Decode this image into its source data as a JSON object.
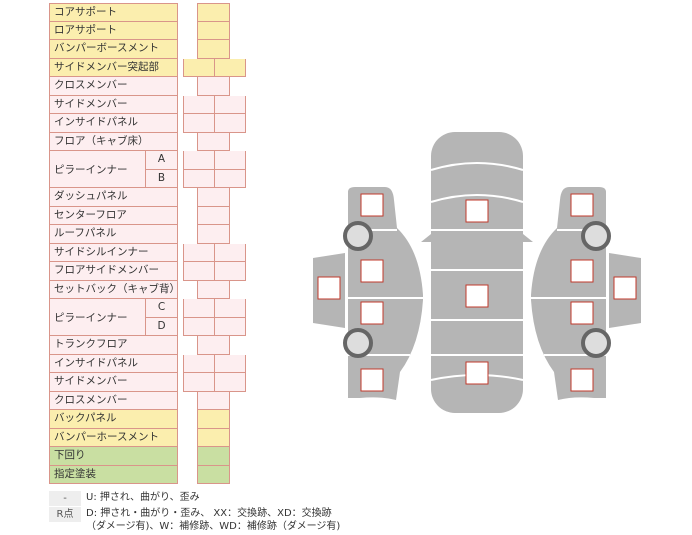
{
  "rows": [
    {
      "label": "コアサポート",
      "color": "y",
      "cells": 1
    },
    {
      "label": "ロアサポート",
      "color": "y",
      "cells": 1
    },
    {
      "label": "バンパーボースメント",
      "color": "y",
      "cells": 1
    },
    {
      "label": "サイドメンバー突起部",
      "color": "y",
      "cells": 2
    },
    {
      "label": "クロスメンバー",
      "color": "p",
      "cells": 1
    },
    {
      "label": "サイドメンバー",
      "color": "p",
      "cells": 2
    },
    {
      "label": "インサイドパネル",
      "color": "p",
      "cells": 2
    },
    {
      "label": "フロア（キャブ床）",
      "color": "p",
      "cells": 1
    },
    {
      "label": "ピラーインナー",
      "sub": "A",
      "color": "p",
      "cells": 2
    },
    {
      "label": "",
      "sub": "B",
      "color": "p",
      "cells": 2
    },
    {
      "label": "ダッシュパネル",
      "color": "p",
      "cells": 1
    },
    {
      "label": "センターフロア",
      "color": "p",
      "cells": 1
    },
    {
      "label": "ルーフパネル",
      "color": "p",
      "cells": 1
    },
    {
      "label": "サイドシルインナー",
      "color": "p",
      "cells": 2
    },
    {
      "label": "フロアサイドメンバー",
      "color": "p",
      "cells": 2
    },
    {
      "label": "セットバック（キャブ背）",
      "color": "p",
      "cells": 1
    },
    {
      "label": "ピラーインナー",
      "sub": "C",
      "color": "p",
      "cells": 2
    },
    {
      "label": "",
      "sub": "D",
      "color": "p",
      "cells": 2
    },
    {
      "label": "トランクフロア",
      "color": "p",
      "cells": 1
    },
    {
      "label": "インサイドパネル",
      "color": "p",
      "cells": 2
    },
    {
      "label": "サイドメンバー",
      "color": "p",
      "cells": 2
    },
    {
      "label": "クロスメンバー",
      "color": "p",
      "cells": 1
    },
    {
      "label": "バックパネル",
      "color": "y",
      "cells": 1
    },
    {
      "label": "バンパーホースメント",
      "color": "y",
      "cells": 1
    },
    {
      "label": "下回り",
      "color": "g",
      "cells": 1
    },
    {
      "label": "指定塗装",
      "color": "g",
      "cells": 1
    }
  ],
  "legend": [
    {
      "key": "-",
      "text": "U: 押され、曲がり、歪み"
    },
    {
      "key": "R点",
      "text": "D: 押され・曲がり・歪み、 XX：交換跡、XD：交換跡",
      "text2": "（ダメージ有)、W：補修跡、WD：補修跡（ダメージ有)"
    }
  ],
  "colors": {
    "yellow": "#fbeeae",
    "pink": "#fdeef0",
    "green": "#c9dfa2",
    "border": "#d9958a",
    "car": "#b5b5b5",
    "marker": "#c0392b"
  }
}
